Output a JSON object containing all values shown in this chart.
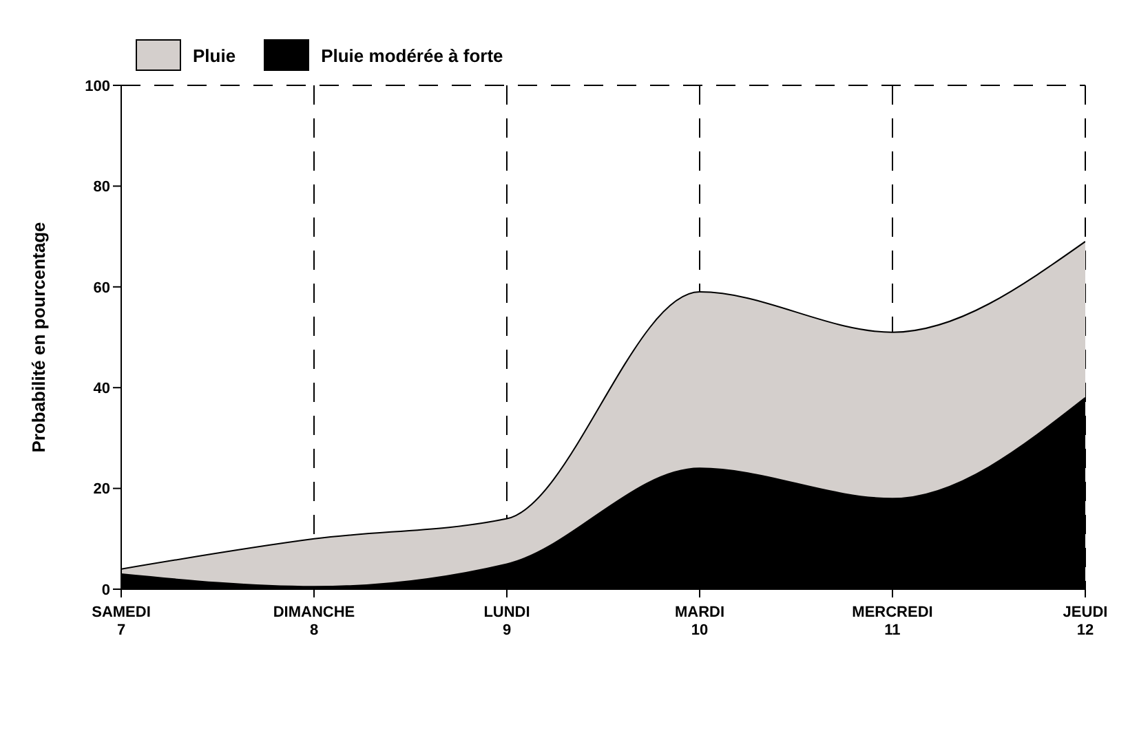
{
  "chart_data": {
    "type": "area",
    "ylabel": "Probabilité en pourcentage",
    "categories": [
      "SAMEDI 7",
      "DIMANCHE 8",
      "LUNDI 9",
      "MARDI 10",
      "MERCREDI 11",
      "JEUDI 12"
    ],
    "series": [
      {
        "name": "Pluie",
        "color": "#d4cfcc",
        "values": [
          4,
          10,
          14,
          59,
          51,
          69
        ]
      },
      {
        "name": "Pluie modérée à forte",
        "color": "#000000",
        "values": [
          3,
          0.5,
          5,
          24,
          18,
          38
        ]
      }
    ],
    "ylim": [
      0,
      100
    ],
    "yticks": [
      0,
      20,
      40,
      60,
      80,
      100
    ],
    "grid": true,
    "legend": "top left"
  }
}
